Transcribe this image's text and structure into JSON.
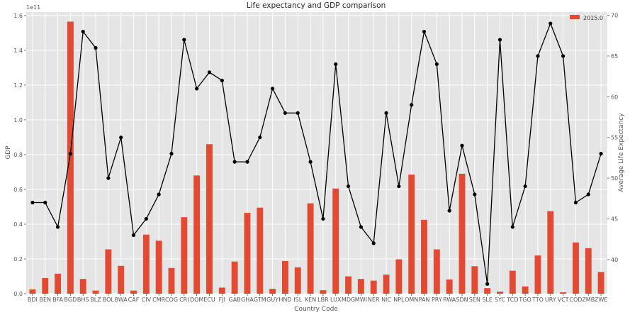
{
  "chart_data": {
    "type": "bar",
    "title": "Life expectancy and GDP comparison",
    "xlabel": "Country Code",
    "ylabel": "GDP",
    "y2label": "Average Life Expectancy",
    "y_offset_label": "1e11",
    "ylim": [
      0,
      1.62
    ],
    "y2lim": [
      35.8,
      70.4
    ],
    "y_ticks": [
      "0.0",
      "0.2",
      "0.4",
      "0.6",
      "0.8",
      "1.0",
      "1.2",
      "1.4",
      "1.6"
    ],
    "y_tick_values": [
      0.0,
      0.2,
      0.4,
      0.6,
      0.8,
      1.0,
      1.2,
      1.4,
      1.6
    ],
    "y2_ticks": [
      "40",
      "45",
      "50",
      "55",
      "60",
      "65",
      "70"
    ],
    "y2_tick_values": [
      40,
      45,
      50,
      55,
      60,
      65,
      70
    ],
    "grid": true,
    "legend_position": "top-right",
    "background_color": "#e5e5e5",
    "bar_color": "#e24a33",
    "line_color": "#000000",
    "categories": [
      "BDI",
      "BEN",
      "BFA",
      "BGD",
      "BHS",
      "BLZ",
      "BOL",
      "BWA",
      "CAF",
      "CIV",
      "CMR",
      "COG",
      "CRI",
      "DOM",
      "ECU",
      "FJI",
      "GAB",
      "GHA",
      "GTM",
      "GUY",
      "HND",
      "ISL",
      "KEN",
      "LBR",
      "LUX",
      "MDG",
      "MWI",
      "NER",
      "NIC",
      "NPL",
      "OMN",
      "PAN",
      "PRY",
      "RWA",
      "SDN",
      "SEN",
      "SLE",
      "SYC",
      "TCD",
      "TGO",
      "TTO",
      "URY",
      "VCT",
      "COD",
      "ZMB",
      "ZWE"
    ],
    "series": [
      {
        "name": "2015.0",
        "kind": "bar",
        "axis": "left",
        "values": [
          0.025,
          0.09,
          0.115,
          1.565,
          0.085,
          0.018,
          0.255,
          0.16,
          0.018,
          0.34,
          0.305,
          0.148,
          0.44,
          0.68,
          0.86,
          0.035,
          0.185,
          0.465,
          0.495,
          0.028,
          0.188,
          0.152,
          0.52,
          0.02,
          0.605,
          0.1,
          0.085,
          0.075,
          0.11,
          0.198,
          0.685,
          0.425,
          0.255,
          0.082,
          0.69,
          0.158,
          0.032,
          0.012,
          0.132,
          0.042,
          0.22,
          0.475,
          0.008,
          0.295,
          0.262,
          0.125
        ]
      },
      {
        "name": "Average Life Expectancy",
        "kind": "line",
        "axis": "right",
        "values": [
          47,
          47,
          44,
          53,
          68,
          66,
          50,
          55,
          43,
          45,
          48,
          53,
          67,
          61,
          63,
          62,
          52,
          52,
          55,
          61,
          58,
          58,
          52,
          45,
          64,
          49,
          44,
          42,
          58,
          49,
          59,
          68,
          64,
          46,
          54,
          48,
          37,
          67,
          44,
          49,
          65,
          69,
          65,
          47,
          48,
          53
        ]
      }
    ]
  }
}
